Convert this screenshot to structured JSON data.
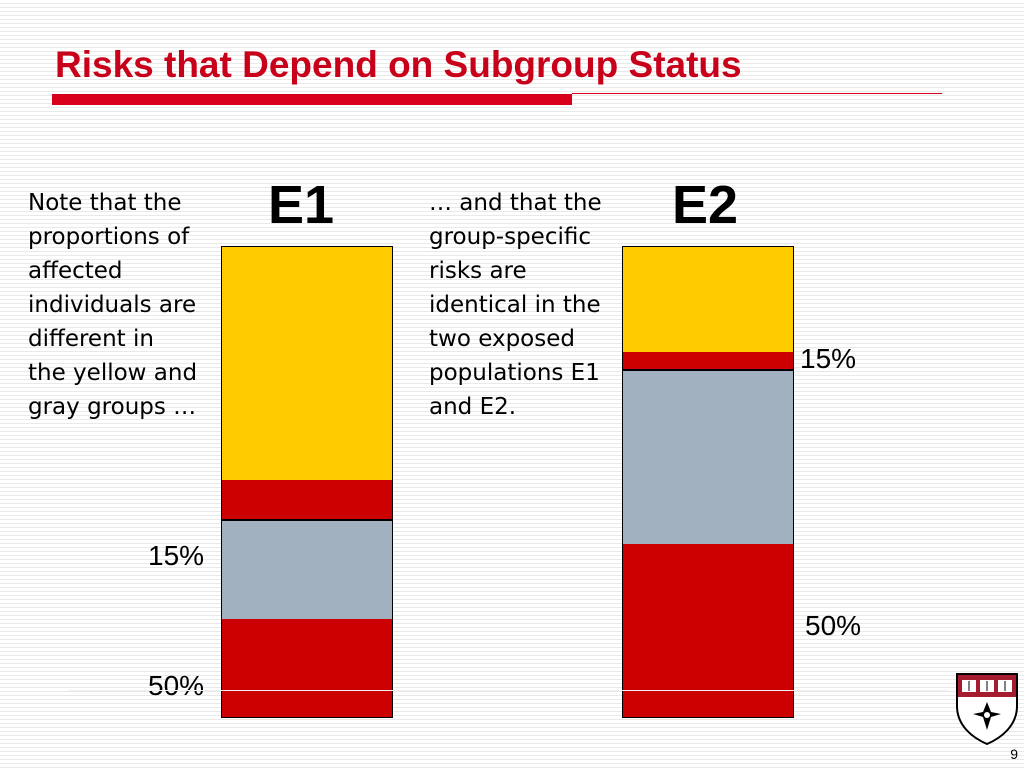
{
  "slide": {
    "title": "Risks that Depend on Subgroup Status",
    "page_number": "9"
  },
  "notes": {
    "left": "Note that the proportions of affected individuals are different in the yellow and gray groups …",
    "middle": "… and that the group-specific risks are identical in the two exposed populations E1 and E2."
  },
  "colors": {
    "yellow_group": "#ffcc00",
    "affected": "#cc0000",
    "gray_group": "#a2b1c0",
    "title": "#c8001a"
  },
  "bars": [
    {
      "label": "E1",
      "risk_top_label": "15%",
      "risk_bottom_label": "50%",
      "yellow_fraction": 0.583,
      "gray_fraction": 0.417,
      "yellow_affected_fraction": 0.15,
      "gray_affected_fraction": 0.5
    },
    {
      "label": "E2",
      "risk_top_label": "15%",
      "risk_bottom_label": "50%",
      "yellow_fraction": 0.263,
      "gray_fraction": 0.737,
      "yellow_affected_fraction": 0.15,
      "gray_affected_fraction": 0.5
    }
  ]
}
